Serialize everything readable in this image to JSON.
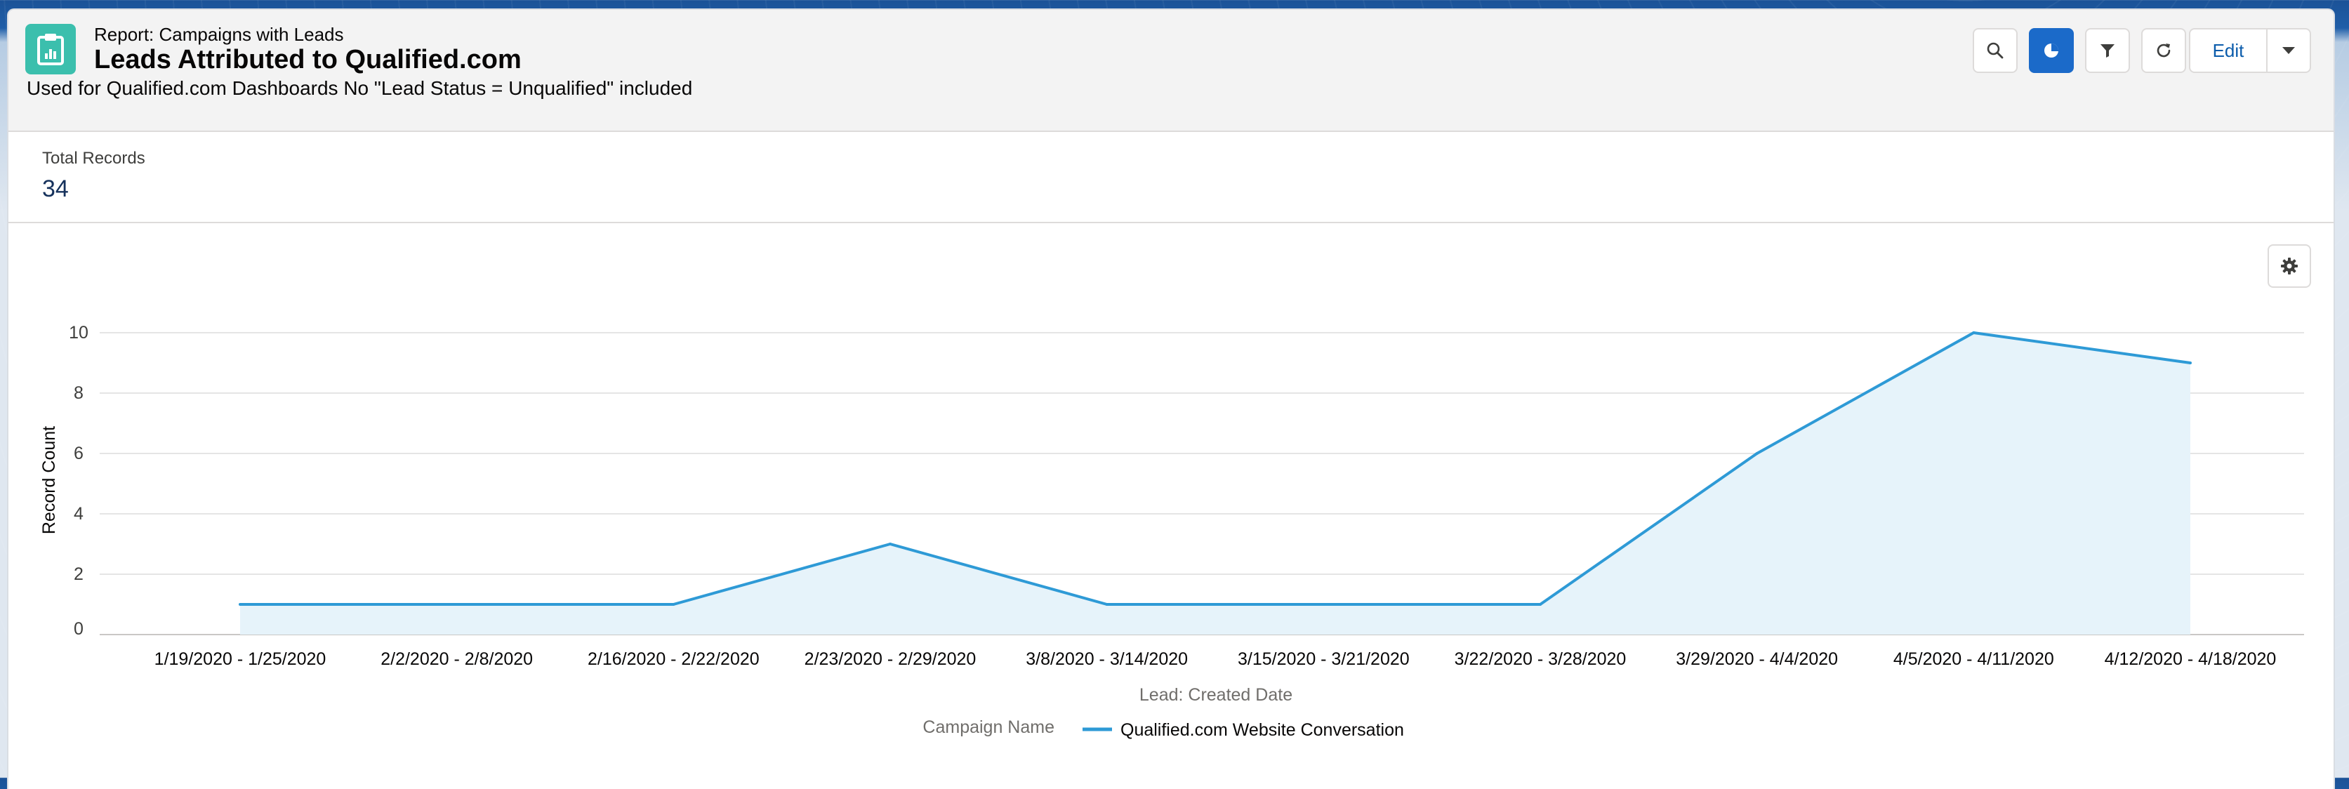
{
  "header": {
    "report_type": "Report: Campaigns with Leads",
    "title": "Leads Attributed to Qualified.com",
    "description": "Used for Qualified.com Dashboards No \"Lead Status = Unqualified\" included",
    "icon": "report-icon"
  },
  "toolbar": {
    "search_icon": "search-icon",
    "chart_icon": "chart-icon",
    "filter_icon": "filter-icon",
    "refresh_icon": "refresh-icon",
    "edit_label": "Edit",
    "menu_icon": "chevron-down-icon"
  },
  "summary": {
    "label": "Total Records",
    "value": "34"
  },
  "chart_settings_icon": "gear-icon",
  "colors": {
    "accent": "#1b6ac9",
    "line": "#2e9ad6",
    "area": "#e6f3fa",
    "icon_bg": "#3bbfad"
  },
  "chart_data": {
    "type": "area",
    "x": [
      "1/19/2020 - 1/25/2020",
      "2/2/2020 - 2/8/2020",
      "2/16/2020 - 2/22/2020",
      "2/23/2020 - 2/29/2020",
      "3/8/2020 - 3/14/2020",
      "3/15/2020 - 3/21/2020",
      "3/22/2020 - 3/28/2020",
      "3/29/2020 - 4/4/2020",
      "4/5/2020 - 4/11/2020",
      "4/12/2020 - 4/18/2020"
    ],
    "series": [
      {
        "name": "Qualified.com Website Conversation",
        "values": [
          1,
          1,
          1,
          3,
          1,
          1,
          1,
          6,
          10,
          9
        ]
      }
    ],
    "xlabel": "Lead: Created Date",
    "ylabel": "Record Count",
    "ylim": [
      0,
      10
    ],
    "yticks": [
      0,
      2,
      4,
      6,
      8,
      10
    ],
    "legend_title": "Campaign Name",
    "legend_position": "bottom",
    "grid": true
  }
}
